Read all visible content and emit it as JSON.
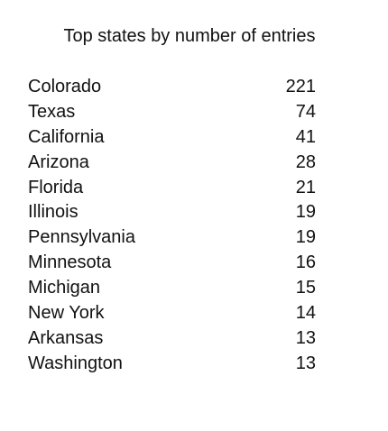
{
  "title": "Top states by number of entries",
  "rows": [
    {
      "state": "Colorado",
      "count": "221"
    },
    {
      "state": "Texas",
      "count": "74"
    },
    {
      "state": "California",
      "count": "41"
    },
    {
      "state": "Arizona",
      "count": "28"
    },
    {
      "state": "Florida",
      "count": "21"
    },
    {
      "state": "Illinois",
      "count": "19"
    },
    {
      "state": "Pennsylvania",
      "count": "19"
    },
    {
      "state": "Minnesota",
      "count": "16"
    },
    {
      "state": "Michigan",
      "count": "15"
    },
    {
      "state": "New York",
      "count": "14"
    },
    {
      "state": "Arkansas",
      "count": "13"
    },
    {
      "state": "Washington",
      "count": "13"
    }
  ]
}
